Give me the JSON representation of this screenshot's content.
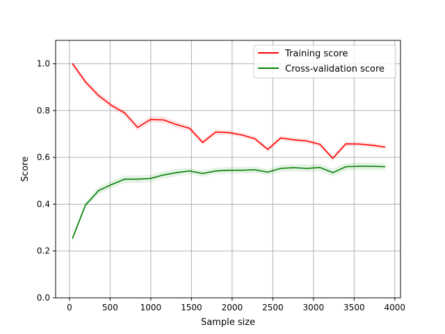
{
  "chart_data": {
    "type": "line",
    "xlabel": "Sample size",
    "ylabel": "Score",
    "xlim": [
      -170,
      4070
    ],
    "ylim": [
      0.0,
      1.1
    ],
    "xticks": [
      0,
      500,
      1000,
      1500,
      2000,
      2500,
      3000,
      3500,
      4000
    ],
    "yticks": [
      0.0,
      0.2,
      0.4,
      0.6,
      0.8,
      1.0
    ],
    "xtick_labels": [
      "0",
      "500",
      "1000",
      "1500",
      "2000",
      "2500",
      "3000",
      "3500",
      "4000"
    ],
    "ytick_labels": [
      "0.0",
      "0.2",
      "0.4",
      "0.6",
      "0.8",
      "1.0"
    ],
    "grid": true,
    "legend_position": "top-right",
    "x": [
      38,
      198,
      358,
      518,
      678,
      838,
      998,
      1158,
      1318,
      1478,
      1638,
      1798,
      1958,
      2118,
      2278,
      2438,
      2598,
      2758,
      2918,
      3078,
      3238,
      3398,
      3558,
      3718,
      3878
    ],
    "series": [
      {
        "name": "Training score",
        "color": "#ff0000",
        "values": [
          1.0,
          0.922,
          0.864,
          0.822,
          0.79,
          0.728,
          0.762,
          0.76,
          0.74,
          0.724,
          0.664,
          0.708,
          0.706,
          0.696,
          0.68,
          0.634,
          0.683,
          0.675,
          0.67,
          0.656,
          0.596,
          0.658,
          0.657,
          0.652,
          0.644
        ],
        "band": [
          0.012,
          0.012,
          0.014,
          0.012,
          0.014,
          0.016,
          0.014,
          0.014,
          0.014,
          0.012,
          0.012,
          0.012,
          0.01,
          0.01,
          0.01,
          0.01,
          0.01,
          0.01,
          0.01,
          0.01,
          0.01,
          0.01,
          0.01,
          0.01,
          0.01
        ]
      },
      {
        "name": "Cross-validation score",
        "color": "#008000",
        "values": [
          0.255,
          0.397,
          0.458,
          0.484,
          0.507,
          0.507,
          0.51,
          0.525,
          0.535,
          0.542,
          0.531,
          0.542,
          0.545,
          0.545,
          0.547,
          0.537,
          0.553,
          0.556,
          0.553,
          0.557,
          0.535,
          0.56,
          0.562,
          0.562,
          0.56
        ],
        "band": [
          0.01,
          0.012,
          0.016,
          0.016,
          0.016,
          0.016,
          0.016,
          0.016,
          0.016,
          0.014,
          0.014,
          0.014,
          0.014,
          0.014,
          0.014,
          0.014,
          0.014,
          0.016,
          0.016,
          0.016,
          0.016,
          0.016,
          0.016,
          0.016,
          0.016
        ]
      }
    ]
  }
}
